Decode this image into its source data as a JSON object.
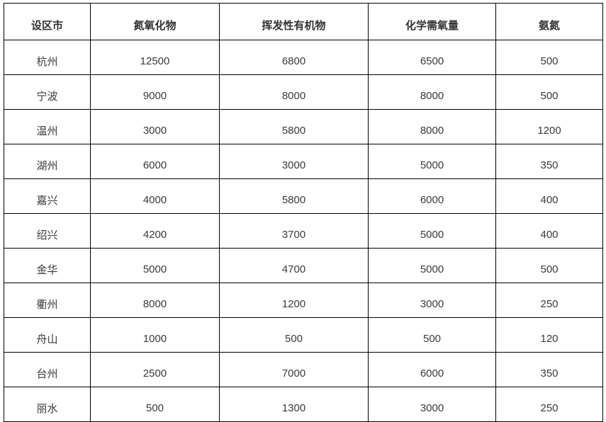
{
  "table": {
    "headers": [
      "设区市",
      "氮氧化物",
      "挥发性有机物",
      "化学需氧量",
      "氨氮"
    ],
    "rows": [
      [
        "杭州",
        "12500",
        "6800",
        "6500",
        "500"
      ],
      [
        "宁波",
        "9000",
        "8000",
        "8000",
        "500"
      ],
      [
        "温州",
        "3000",
        "5800",
        "8000",
        "1200"
      ],
      [
        "湖州",
        "6000",
        "3000",
        "5000",
        "350"
      ],
      [
        "嘉兴",
        "4000",
        "5800",
        "6000",
        "400"
      ],
      [
        "绍兴",
        "4200",
        "3700",
        "5000",
        "400"
      ],
      [
        "金华",
        "5000",
        "4700",
        "5000",
        "500"
      ],
      [
        "衢州",
        "8000",
        "1200",
        "3000",
        "250"
      ],
      [
        "舟山",
        "1000",
        "500",
        "500",
        "120"
      ],
      [
        "台州",
        "2500",
        "7000",
        "6000",
        "350"
      ],
      [
        "丽水",
        "500",
        "1300",
        "3000",
        "250"
      ]
    ]
  },
  "chart_data": {
    "type": "table",
    "columns": [
      "设区市",
      "氮氧化物",
      "挥发性有机物",
      "化学需氧量",
      "氨氮"
    ],
    "rows": [
      {
        "设区市": "杭州",
        "氮氧化物": 12500,
        "挥发性有机物": 6800,
        "化学需氧量": 6500,
        "氨氮": 500
      },
      {
        "设区市": "宁波",
        "氮氧化物": 9000,
        "挥发性有机物": 8000,
        "化学需氧量": 8000,
        "氨氮": 500
      },
      {
        "设区市": "温州",
        "氮氧化物": 3000,
        "挥发性有机物": 5800,
        "化学需氧量": 8000,
        "氨氮": 1200
      },
      {
        "设区市": "湖州",
        "氮氧化物": 6000,
        "挥发性有机物": 3000,
        "化学需氧量": 5000,
        "氨氮": 350
      },
      {
        "设区市": "嘉兴",
        "氮氧化物": 4000,
        "挥发性有机物": 5800,
        "化学需氧量": 6000,
        "氨氮": 400
      },
      {
        "设区市": "绍兴",
        "氮氧化物": 4200,
        "挥发性有机物": 3700,
        "化学需氧量": 5000,
        "氨氮": 400
      },
      {
        "设区市": "金华",
        "氮氧化物": 5000,
        "挥发性有机物": 4700,
        "化学需氧量": 5000,
        "氨氮": 500
      },
      {
        "设区市": "衢州",
        "氮氧化物": 8000,
        "挥发性有机物": 1200,
        "化学需氧量": 3000,
        "氨氮": 250
      },
      {
        "设区市": "舟山",
        "氮氧化物": 1000,
        "挥发性有机物": 500,
        "化学需氧量": 500,
        "氨氮": 120
      },
      {
        "设区市": "台州",
        "氮氧化物": 2500,
        "挥发性有机物": 7000,
        "化学需氧量": 6000,
        "氨氮": 350
      },
      {
        "设区市": "丽水",
        "氮氧化物": 500,
        "挥发性有机物": 1300,
        "化学需氧量": 3000,
        "氨氮": 250
      }
    ]
  },
  "colors": {
    "border": "#000000",
    "header_text": "#333333",
    "cell_text": "#3a3a3a",
    "background": "#ffffff"
  }
}
